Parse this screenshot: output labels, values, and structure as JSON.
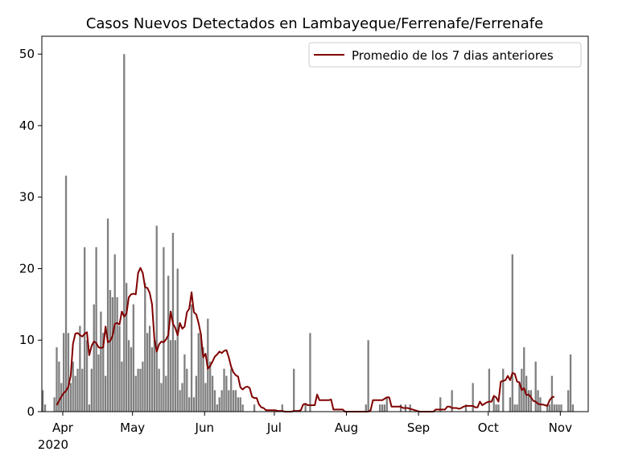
{
  "chart_data": {
    "type": "bar",
    "title": "Casos Nuevos Detectados en Lambayeque/Ferrenafe/Ferrenafe",
    "xlabel": "",
    "ylabel": "",
    "x_start": "2020-03-23",
    "x_end": "2020-11-13",
    "ylim": [
      0,
      52.5
    ],
    "y_ticks": [
      0,
      10,
      20,
      30,
      40,
      50
    ],
    "x_ticks": [
      {
        "date": "2020-04-01",
        "label": "Apr"
      },
      {
        "date": "2020-05-01",
        "label": "May"
      },
      {
        "date": "2020-06-01",
        "label": "Jun"
      },
      {
        "date": "2020-07-01",
        "label": "Jul"
      },
      {
        "date": "2020-08-01",
        "label": "Aug"
      },
      {
        "date": "2020-09-01",
        "label": "Sep"
      },
      {
        "date": "2020-10-01",
        "label": "Oct"
      },
      {
        "date": "2020-11-01",
        "label": "Nov"
      }
    ],
    "x_year_label": "2020",
    "legend": {
      "position": "top-right",
      "entries": [
        {
          "label": "Promedio de los 7 dias anteriores",
          "color": "#800000"
        }
      ]
    },
    "grid": false,
    "colors": {
      "bars": "#808080",
      "line": "#800000"
    },
    "series": [
      {
        "kind": "bar",
        "start_date": "2020-03-23",
        "values": [
          3,
          1,
          0,
          0,
          0,
          2,
          9,
          7,
          4,
          11,
          33,
          11,
          4,
          7,
          5,
          6,
          12,
          6,
          23,
          10,
          1,
          6,
          15,
          23,
          8,
          14,
          11,
          5,
          27,
          17,
          16,
          22,
          16,
          12,
          7,
          50,
          18,
          10,
          9,
          15,
          5,
          6,
          6,
          7,
          18,
          11,
          12,
          9,
          10,
          26,
          6,
          4,
          23,
          5,
          19,
          10,
          25,
          10,
          20,
          3,
          4,
          8,
          6,
          2,
          15,
          2,
          5,
          11,
          11,
          9,
          4,
          13,
          7,
          5,
          3,
          1,
          2,
          3,
          6,
          5,
          3,
          6,
          3,
          3,
          2,
          2,
          1,
          0,
          0,
          0,
          0,
          1,
          0,
          0,
          0,
          0,
          0,
          0,
          0,
          0,
          0,
          0,
          0,
          1,
          0,
          0,
          0,
          0,
          6,
          0,
          0,
          0,
          0,
          1,
          0,
          11,
          0,
          0,
          0,
          0,
          0,
          0,
          0,
          0,
          0,
          0,
          0,
          0,
          0,
          0,
          0,
          0,
          0,
          0,
          0,
          0,
          0,
          0,
          0,
          1,
          10,
          0,
          0,
          0,
          0,
          1,
          1,
          1,
          2,
          0,
          0,
          0,
          0,
          0,
          1,
          0,
          1,
          0,
          1,
          0,
          0,
          0,
          0,
          0,
          0,
          0,
          0,
          0,
          0,
          0,
          0,
          2,
          0,
          0,
          0,
          0,
          3,
          0,
          0,
          0,
          0,
          0,
          1,
          0,
          0,
          4,
          0,
          0,
          0,
          0,
          0,
          0,
          6,
          0,
          2,
          1,
          1,
          0,
          6,
          0,
          0,
          2,
          22,
          1,
          1,
          4,
          6,
          9,
          5,
          3,
          3,
          0,
          7,
          3,
          2,
          0,
          0,
          1,
          1,
          5,
          1,
          1,
          1,
          1,
          0,
          0,
          3,
          8,
          1
        ]
      },
      {
        "kind": "line",
        "name": "Promedio de los 7 dias anteriores",
        "start_date": "2020-03-29",
        "values": [
          0.9,
          1.5,
          2.1,
          2.6,
          2.9,
          3.5,
          5.0,
          9.5,
          10.9,
          11.0,
          10.7,
          10.5,
          10.9,
          11.1,
          7.9,
          9.2,
          9.8,
          9.6,
          9.0,
          8.9,
          9.0,
          11.9,
          9.7,
          9.9,
          10.6,
          12.3,
          12.4,
          12.2,
          14.0,
          13.3,
          13.7,
          16.0,
          16.4,
          16.5,
          16.4,
          19.4,
          20.1,
          19.4,
          17.4,
          17.3,
          16.6,
          15.0,
          10.2,
          8.4,
          9.4,
          9.8,
          9.7,
          10.1,
          10.7,
          14.0,
          12.3,
          11.7,
          10.7,
          12.4,
          11.6,
          11.9,
          13.9,
          14.4,
          16.7,
          13.9,
          13.6,
          12.4,
          10.8,
          7.6,
          8.1,
          6.0,
          6.4,
          7.0,
          7.7,
          8.0,
          8.4,
          8.2,
          8.5,
          8.6,
          7.6,
          6.3,
          5.5,
          5.1,
          4.9,
          3.4,
          3.1,
          3.4,
          3.5,
          3.3,
          2.1,
          1.9,
          1.9,
          1.0,
          0.6,
          0.5,
          0.2,
          0.2,
          0.2,
          0.2,
          0.2,
          0.1,
          0.1,
          0.1,
          0.0,
          0.0,
          0.0,
          0.0,
          0.1,
          0.1,
          0.1,
          0.2,
          1.0,
          1.1,
          0.9,
          0.9,
          0.9,
          0.9,
          2.4,
          1.6,
          1.6,
          1.6,
          1.6,
          1.6,
          1.7,
          0.3,
          0.3,
          0.3,
          0.3,
          0.3,
          0.0,
          0.0,
          0.0,
          0.0,
          0.0,
          0.0,
          0.0,
          0.0,
          0.0,
          0.0,
          0.0,
          0.2,
          1.6,
          1.6,
          1.6,
          1.6,
          1.6,
          1.8,
          2.0,
          2.0,
          0.7,
          0.7,
          0.7,
          0.7,
          0.7,
          0.5,
          0.5,
          0.5,
          0.4,
          0.3,
          0.2,
          0.1,
          0.0,
          0.0,
          0.0,
          0.0,
          0.0,
          0.0,
          0.0,
          0.3,
          0.3,
          0.3,
          0.3,
          0.3,
          0.7,
          0.7,
          0.5,
          0.5,
          0.5,
          0.4,
          0.5,
          0.7,
          0.8,
          0.8,
          0.8,
          0.8,
          0.6,
          0.6,
          1.4,
          0.9,
          1.1,
          1.3,
          1.4,
          1.4,
          2.2,
          2.0,
          1.4,
          4.2,
          4.3,
          4.4,
          5.0,
          4.4,
          5.4,
          5.3,
          4.2,
          4.1,
          3.0,
          3.3,
          2.3,
          2.4,
          2.0,
          1.5,
          1.4,
          1.1,
          1.0,
          1.0,
          0.9,
          0.8,
          1.6,
          2.0,
          2.1
        ]
      }
    ]
  }
}
